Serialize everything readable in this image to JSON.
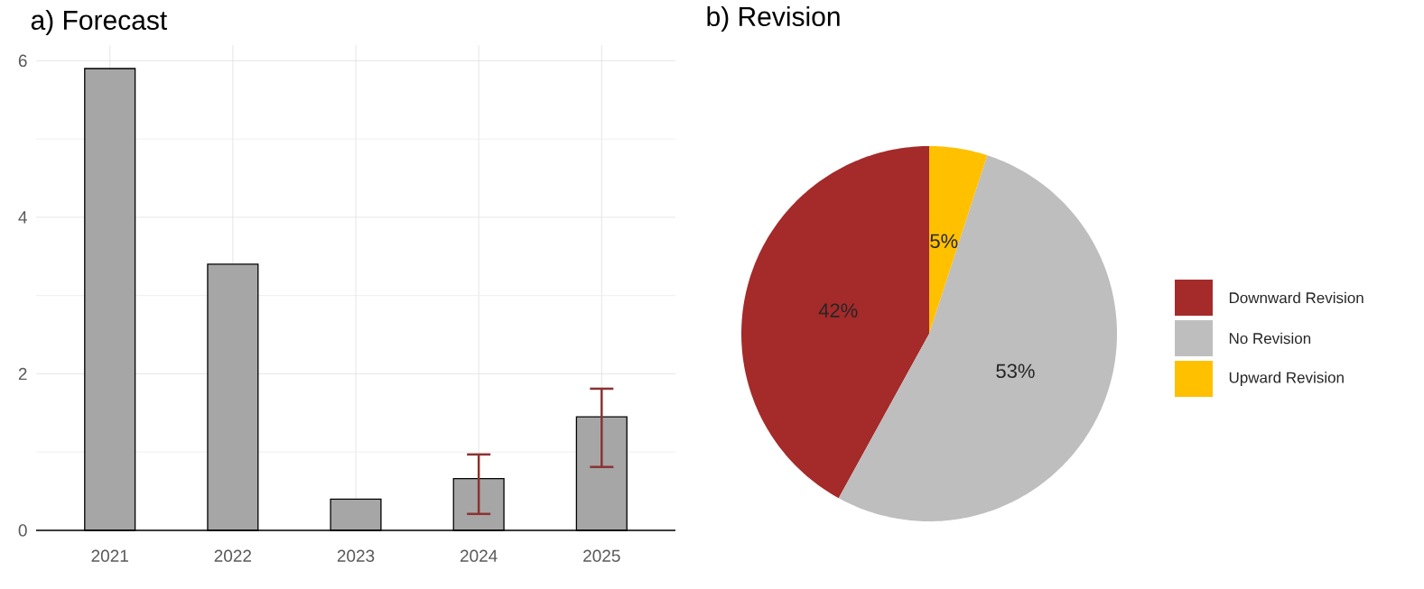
{
  "chart_data": [
    {
      "type": "bar",
      "title": "a) Forecast",
      "categories": [
        "2021",
        "2022",
        "2023",
        "2024",
        "2025"
      ],
      "values": [
        5.9,
        3.4,
        0.4,
        0.66,
        1.45
      ],
      "errors": [
        null,
        null,
        null,
        [
          0.21,
          0.97
        ],
        [
          0.81,
          1.81
        ]
      ],
      "color": "#a6a6a6",
      "ylim": [
        0,
        6.2
      ],
      "yticks": [
        0,
        2,
        4,
        6
      ],
      "grid": true
    },
    {
      "type": "pie",
      "title": "b) Revision",
      "categories": [
        "Downward Revision",
        "No Revision",
        "Upward Revision"
      ],
      "values": [
        42,
        53,
        5
      ],
      "colors": [
        "#a52a2a",
        "#bebebe",
        "#ffc000"
      ],
      "value_labels": [
        "42%",
        "53%",
        "5%"
      ],
      "legend": "right"
    }
  ]
}
